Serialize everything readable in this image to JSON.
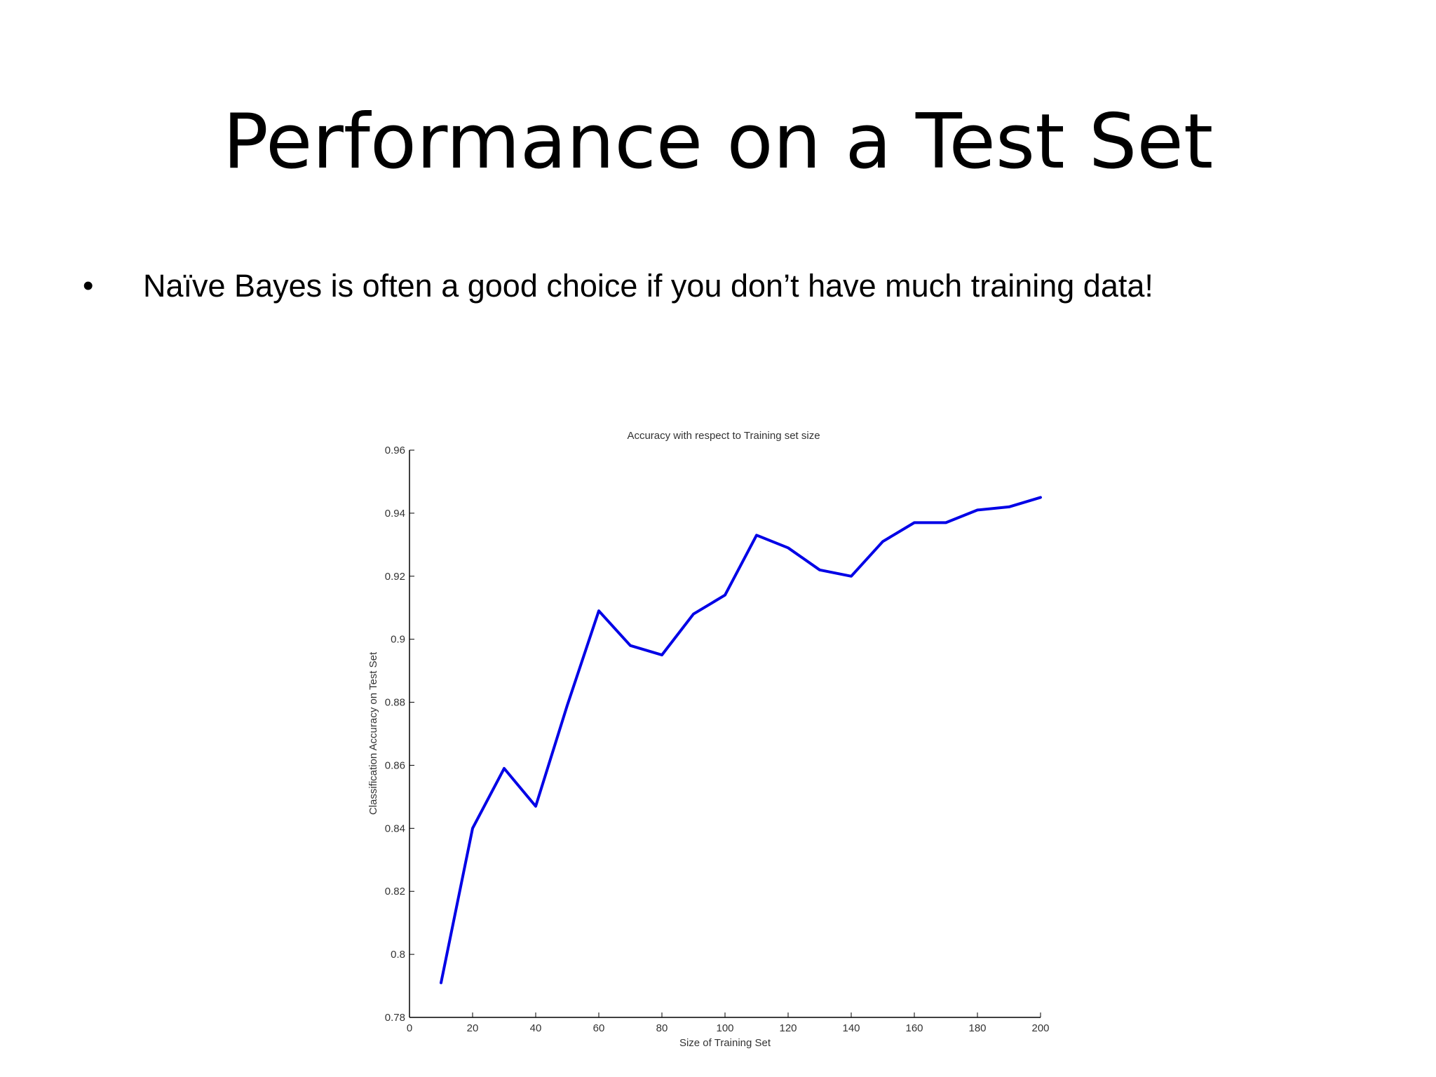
{
  "slide": {
    "title": "Performance on a Test Set",
    "bullets": [
      {
        "marker": "•",
        "text": "Naïve Bayes is often a good choice if you don’t have much training data!"
      }
    ]
  },
  "chart_data": {
    "type": "line",
    "title": "Accuracy with respect to Training set size",
    "xlabel": "Size of Training Set",
    "ylabel": "Classification Accuracy on Test Set",
    "xlim": [
      0,
      200
    ],
    "ylim": [
      0.78,
      0.96
    ],
    "x_ticks": [
      0,
      20,
      40,
      60,
      80,
      100,
      120,
      140,
      160,
      180,
      200
    ],
    "y_ticks": [
      0.78,
      0.8,
      0.82,
      0.84,
      0.86,
      0.88,
      0.9,
      0.92,
      0.94,
      0.96
    ],
    "x_tick_labels": [
      "0",
      "20",
      "40",
      "60",
      "80",
      "100",
      "120",
      "140",
      "160",
      "180",
      "200"
    ],
    "y_tick_labels": [
      "0.78",
      "0.8",
      "0.82",
      "0.84",
      "0.86",
      "0.88",
      "0.9",
      "0.92",
      "0.94",
      "0.96"
    ],
    "grid": false,
    "color": "#0000e6",
    "series": [
      {
        "x": [
          10,
          20,
          30,
          40,
          50,
          60,
          70,
          80,
          90,
          100,
          110,
          120,
          130,
          140,
          150,
          160,
          170,
          180,
          190,
          200
        ],
        "values": [
          0.791,
          0.84,
          0.859,
          0.847,
          0.879,
          0.909,
          0.898,
          0.895,
          0.908,
          0.914,
          0.933,
          0.929,
          0.922,
          0.92,
          0.931,
          0.937,
          0.937,
          0.941,
          0.942,
          0.945
        ]
      }
    ]
  }
}
